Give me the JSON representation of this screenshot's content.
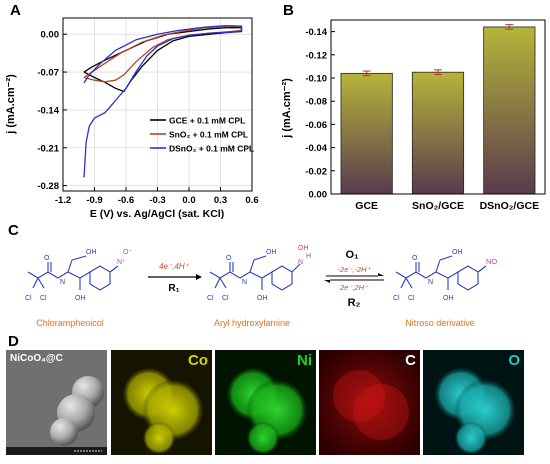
{
  "panels": {
    "a": {
      "label": "A"
    },
    "b": {
      "label": "B"
    },
    "c": {
      "label": "C"
    },
    "d": {
      "label": "D"
    }
  },
  "chart_data": [
    {
      "type": "line",
      "panel": "A",
      "title": "",
      "xlabel": "E (V) vs. Ag/AgCl (sat. KCl)",
      "ylabel": "j (mA.cm⁻²)",
      "xlim": [
        -1.2,
        0.6
      ],
      "ylim": [
        -0.29,
        0.03
      ],
      "xticks": [
        "-1.2",
        "-0.9",
        "-0.6",
        "-0.3",
        "0.0",
        "0.3",
        "0.6"
      ],
      "yticks": [
        "0.00",
        "-0.07",
        "-0.14",
        "-0.21",
        "-0.28"
      ],
      "legend_position": "lower-right",
      "series": [
        {
          "name": "GCE + 0.1 mM CPL",
          "color": "#000000",
          "points": [
            [
              -1.0,
              -0.07
            ],
            [
              -0.9,
              -0.08
            ],
            [
              -0.8,
              -0.089
            ],
            [
              -0.7,
              -0.1
            ],
            [
              -0.62,
              -0.106
            ],
            [
              -0.55,
              -0.085
            ],
            [
              -0.45,
              -0.06
            ],
            [
              -0.3,
              -0.03
            ],
            [
              -0.15,
              -0.012
            ],
            [
              0.0,
              -0.004
            ],
            [
              0.2,
              0.0
            ],
            [
              0.35,
              0.003
            ],
            [
              0.5,
              0.005
            ],
            [
              0.5,
              0.012
            ],
            [
              0.35,
              0.012
            ],
            [
              0.2,
              0.01
            ],
            [
              0.0,
              0.005
            ],
            [
              -0.2,
              0.0
            ],
            [
              -0.4,
              -0.012
            ],
            [
              -0.6,
              -0.03
            ],
            [
              -0.8,
              -0.048
            ],
            [
              -0.92,
              -0.06
            ],
            [
              -1.0,
              -0.07
            ]
          ]
        },
        {
          "name": "SnO₂ + 0.1 mM CPL",
          "color": "#b5462a",
          "points": [
            [
              -1.0,
              -0.08
            ],
            [
              -0.9,
              -0.085
            ],
            [
              -0.8,
              -0.088
            ],
            [
              -0.7,
              -0.085
            ],
            [
              -0.62,
              -0.075
            ],
            [
              -0.5,
              -0.05
            ],
            [
              -0.35,
              -0.025
            ],
            [
              -0.2,
              -0.01
            ],
            [
              0.0,
              -0.002
            ],
            [
              0.2,
              0.002
            ],
            [
              0.4,
              0.005
            ],
            [
              0.5,
              0.007
            ],
            [
              0.5,
              0.014
            ],
            [
              0.35,
              0.015
            ],
            [
              0.15,
              0.012
            ],
            [
              -0.05,
              0.006
            ],
            [
              -0.25,
              -0.002
            ],
            [
              -0.45,
              -0.015
            ],
            [
              -0.65,
              -0.035
            ],
            [
              -0.85,
              -0.06
            ],
            [
              -1.0,
              -0.08
            ]
          ]
        },
        {
          "name": "DSnO₂ + 0.1 mM CPL",
          "color": "#3030c8",
          "points": [
            [
              -1.0,
              -0.265
            ],
            [
              -0.98,
              -0.2
            ],
            [
              -0.95,
              -0.17
            ],
            [
              -0.9,
              -0.155
            ],
            [
              -0.85,
              -0.15
            ],
            [
              -0.8,
              -0.145
            ],
            [
              -0.75,
              -0.134
            ],
            [
              -0.68,
              -0.118
            ],
            [
              -0.6,
              -0.1
            ],
            [
              -0.5,
              -0.068
            ],
            [
              -0.4,
              -0.04
            ],
            [
              -0.3,
              -0.022
            ],
            [
              -0.15,
              -0.008
            ],
            [
              0.0,
              -0.002
            ],
            [
              0.2,
              0.002
            ],
            [
              0.4,
              0.004
            ],
            [
              0.5,
              0.006
            ],
            [
              0.5,
              0.015
            ],
            [
              0.35,
              0.016
            ],
            [
              0.15,
              0.013
            ],
            [
              -0.1,
              0.007
            ],
            [
              -0.3,
              0.0
            ],
            [
              -0.5,
              -0.01
            ],
            [
              -0.7,
              -0.03
            ],
            [
              -0.85,
              -0.055
            ],
            [
              -0.95,
              -0.075
            ],
            [
              -1.0,
              -0.09
            ]
          ]
        }
      ]
    },
    {
      "type": "bar",
      "panel": "B",
      "title": "",
      "xlabel": "",
      "ylabel": "j (mA.cm⁻²)",
      "categories": [
        "GCE",
        "SnO₂/GCE",
        "DSnO₂/GCE"
      ],
      "values": [
        -0.104,
        -0.105,
        -0.144
      ],
      "errors": [
        0.002,
        0.002,
        0.002
      ],
      "ylim": [
        0.0,
        -0.15
      ],
      "yticks": [
        "0.00",
        "-0.02",
        "-0.04",
        "-0.06",
        "-0.08",
        "-0.10",
        "-0.12",
        "-0.14"
      ],
      "bar_gradient": [
        "#b5b53a",
        "#5a3a4e"
      ]
    }
  ],
  "scheme": {
    "compounds": {
      "chloramphenicol": "Chloramphenicol",
      "aryl_hydroxylamine": "Aryl hydroxylamine",
      "nitroso": "Nitroso derivative"
    },
    "arrow1": {
      "top": "4e⁻,4H⁺",
      "bottom": "R₁"
    },
    "arrow2": {
      "o_label": "O₁",
      "top": "-2e⁻,-2H⁺",
      "bottom": "2e⁻,2H⁺",
      "r_label": "R₂"
    },
    "atoms": {
      "oh": "OH",
      "h": "H",
      "cl": "Cl",
      "o": "O",
      "no": "NO",
      "n": "N",
      "nplus": "N⁺",
      "ominus": "O⁻"
    },
    "colors": {
      "reaction_label": "#c8501e",
      "scheme_blue": "#2b3dbb",
      "highlight": "#c040a0",
      "compound_name": "#e07020"
    }
  },
  "maps": {
    "sem_label": "NiCoO₄@C",
    "co": "Co",
    "ni": "Ni",
    "c": "C",
    "o": "O",
    "colors": {
      "co": "#d8d800",
      "ni": "#20d020",
      "c": "#e01010",
      "o": "#20c8c8"
    }
  }
}
